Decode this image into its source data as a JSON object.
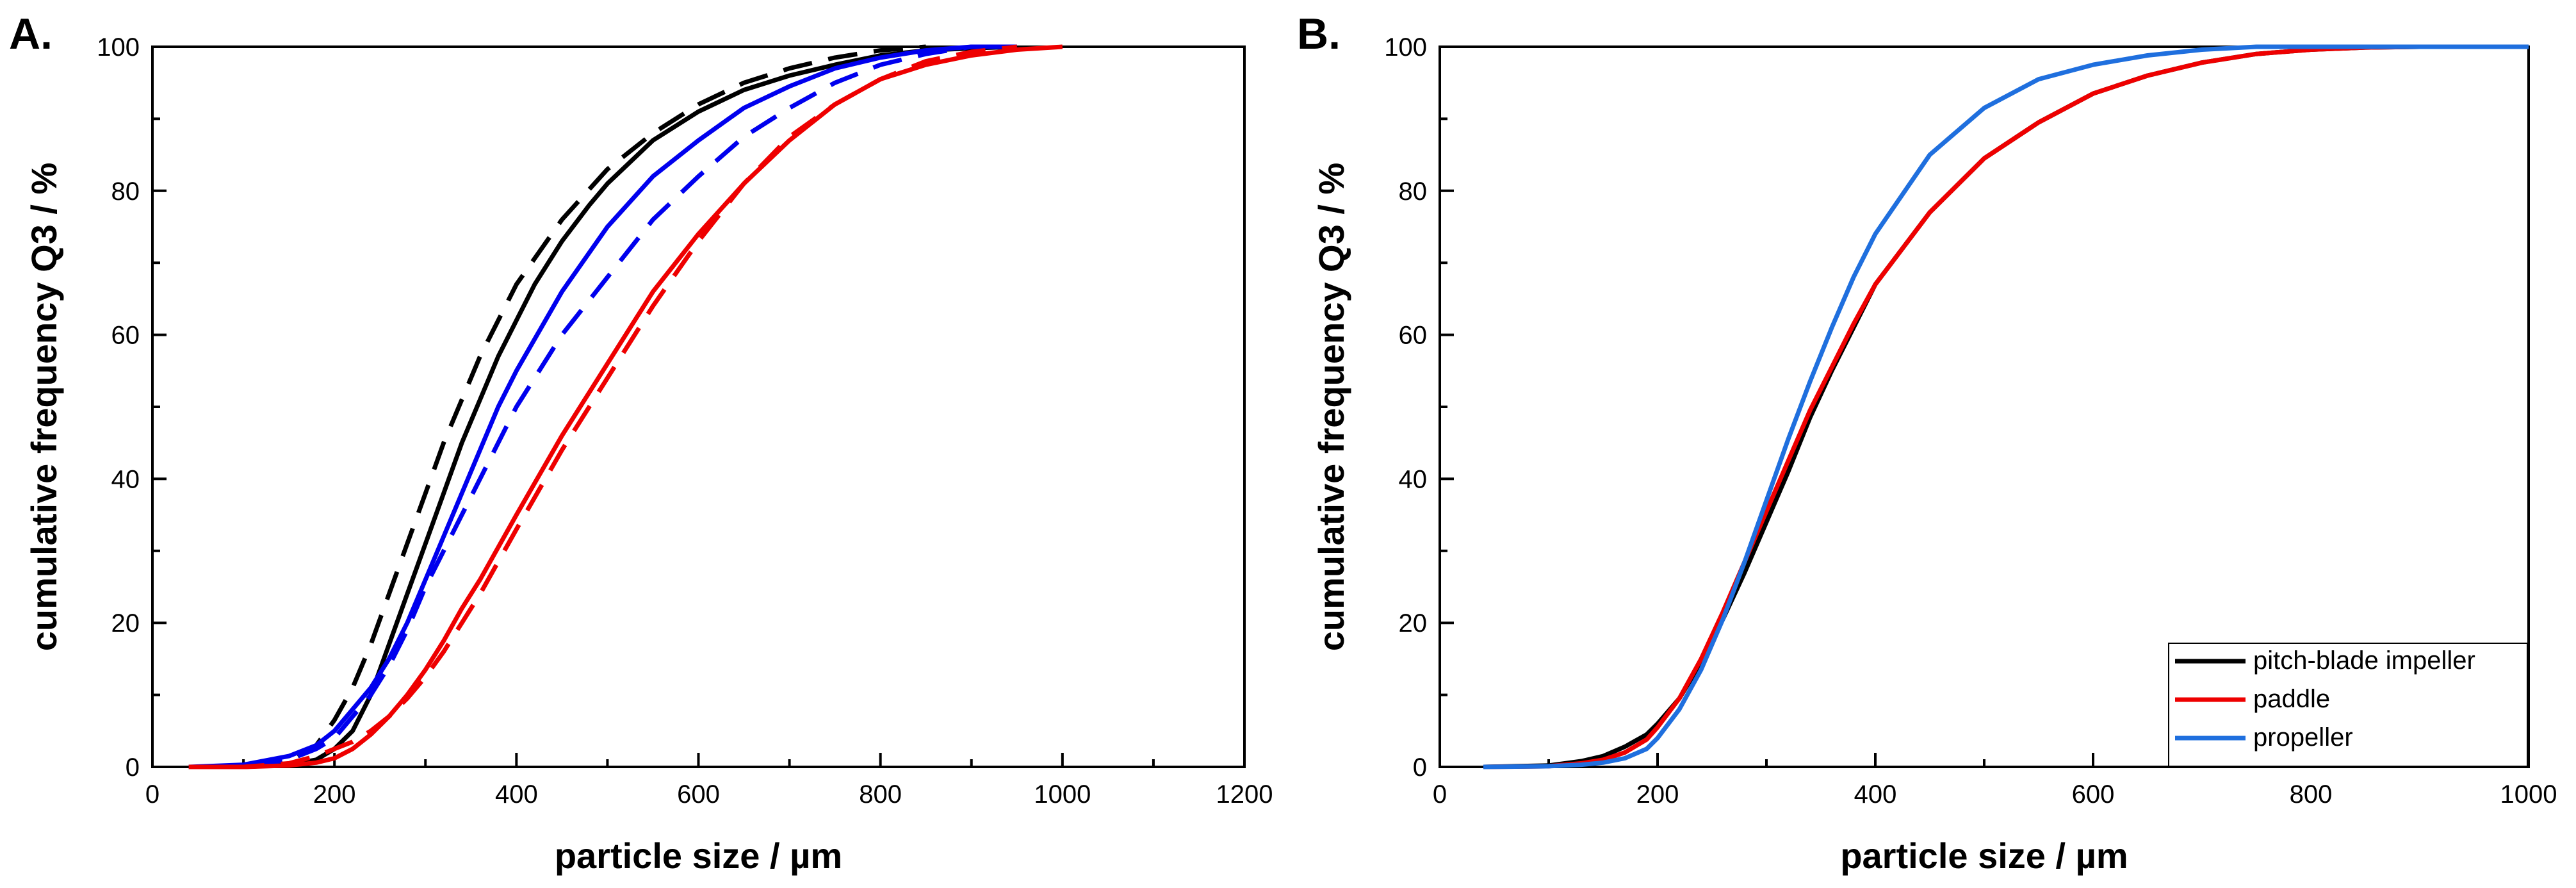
{
  "chart_data": [
    {
      "panel_label": "A.",
      "type": "line",
      "xlabel": "particle size / µm",
      "ylabel": "cumulative frequency Q3 / %",
      "xlim": [
        0,
        1200
      ],
      "ylim": [
        0,
        100
      ],
      "xticks": [
        0,
        200,
        400,
        600,
        800,
        1000,
        1200
      ],
      "yticks": [
        0,
        20,
        40,
        60,
        80,
        100
      ],
      "xtick_labels": [
        "0",
        "200",
        "400",
        "600",
        "800",
        "1000",
        "1200"
      ],
      "ytick_labels": [
        "0",
        "20",
        "40",
        "60",
        "80",
        "100"
      ],
      "grid": false,
      "series": [
        {
          "color": "#000000",
          "dash": "solid",
          "x": [
            40,
            100,
            150,
            180,
            200,
            220,
            240,
            260,
            280,
            300,
            320,
            340,
            360,
            380,
            400,
            420,
            450,
            480,
            500,
            550,
            600,
            650,
            700,
            750,
            800,
            850,
            900,
            950
          ],
          "y": [
            0,
            0,
            0.3,
            1,
            2.5,
            5,
            10,
            17,
            24,
            31,
            38,
            45,
            51,
            57,
            62,
            67,
            73,
            78,
            81,
            87,
            91,
            94,
            96,
            97.5,
            98.8,
            99.5,
            99.8,
            100
          ]
        },
        {
          "color": "#000000",
          "dash": "dashed",
          "x": [
            60,
            100,
            150,
            180,
            200,
            220,
            240,
            260,
            280,
            300,
            320,
            340,
            360,
            380,
            400,
            450,
            500,
            550,
            600,
            650,
            700,
            750,
            800,
            850
          ],
          "y": [
            0,
            0,
            0.8,
            3,
            6.5,
            11,
            17,
            24,
            31,
            38,
            45,
            51,
            57,
            62,
            67,
            76,
            83,
            88,
            92,
            95,
            97,
            98.5,
            99.5,
            100
          ]
        },
        {
          "color": "#0000ee",
          "dash": "solid",
          "x": [
            40,
            100,
            150,
            180,
            200,
            220,
            240,
            260,
            280,
            300,
            320,
            340,
            360,
            380,
            400,
            450,
            500,
            550,
            600,
            650,
            700,
            750,
            800,
            850,
            900,
            950
          ],
          "y": [
            0,
            0.3,
            1.5,
            3,
            5,
            8,
            11,
            15,
            20,
            26,
            32,
            38,
            44,
            50,
            55,
            66,
            75,
            82,
            87,
            91.5,
            94.5,
            97,
            98.5,
            99.5,
            100,
            100
          ]
        },
        {
          "color": "#0000ee",
          "dash": "dashed",
          "x": [
            60,
            100,
            150,
            180,
            200,
            220,
            240,
            260,
            280,
            300,
            320,
            340,
            360,
            380,
            400,
            450,
            500,
            550,
            600,
            650,
            700,
            750,
            800,
            850,
            900
          ],
          "y": [
            0,
            0,
            1,
            2.5,
            4,
            7,
            10,
            14,
            19,
            25,
            30,
            35,
            40,
            45,
            50,
            60,
            68,
            76,
            82,
            87.5,
            91.5,
            95,
            97.5,
            99,
            100
          ]
        },
        {
          "color": "#ee0000",
          "dash": "solid",
          "x": [
            40,
            100,
            150,
            180,
            200,
            220,
            240,
            260,
            280,
            300,
            320,
            340,
            360,
            380,
            400,
            450,
            500,
            550,
            600,
            650,
            700,
            750,
            800,
            850,
            900,
            950,
            1000
          ],
          "y": [
            0,
            0,
            0.2,
            0.6,
            1.2,
            2.5,
            4.5,
            7,
            10,
            13.5,
            17.5,
            22,
            26,
            30.5,
            35,
            46,
            56,
            66,
            74,
            81,
            87,
            92,
            95.5,
            97.5,
            98.8,
            99.6,
            100
          ]
        },
        {
          "color": "#ee0000",
          "dash": "dashed",
          "x": [
            40,
            100,
            150,
            180,
            200,
            220,
            240,
            260,
            280,
            300,
            320,
            340,
            360,
            380,
            400,
            450,
            500,
            550,
            600,
            650,
            700,
            750,
            800,
            850,
            900,
            950
          ],
          "y": [
            0,
            0,
            0.5,
            1.5,
            2.5,
            3.5,
            5,
            7,
            9.5,
            12.5,
            16,
            20,
            24,
            28.5,
            33,
            44,
            54,
            64,
            73,
            81,
            87.5,
            92,
            95.5,
            98,
            99.3,
            100
          ]
        }
      ]
    },
    {
      "panel_label": "B.",
      "type": "line",
      "xlabel": "particle size / µm",
      "ylabel": "cumulative frequency Q3 / %",
      "xlim": [
        0,
        1000
      ],
      "ylim": [
        0,
        100
      ],
      "xticks": [
        0,
        200,
        400,
        600,
        800,
        1000
      ],
      "yticks": [
        0,
        20,
        40,
        60,
        80,
        100
      ],
      "xtick_labels": [
        "0",
        "200",
        "400",
        "600",
        "800",
        "1000"
      ],
      "ytick_labels": [
        "0",
        "20",
        "40",
        "60",
        "80",
        "100"
      ],
      "grid": false,
      "legend_position": "bottom-right",
      "series": [
        {
          "name": "pitch-blade impeller",
          "color": "#000000",
          "dash": "solid",
          "x": [
            40,
            100,
            130,
            150,
            170,
            190,
            200,
            220,
            240,
            260,
            280,
            300,
            320,
            340,
            360,
            380,
            400,
            450,
            500,
            550,
            600,
            650,
            700,
            750,
            800,
            850,
            900,
            1000
          ],
          "y": [
            0,
            0.2,
            0.8,
            1.5,
            2.8,
            4.5,
            6,
            9.5,
            14.5,
            20.5,
            27,
            34,
            41,
            48.5,
            55,
            61,
            67,
            77,
            84.5,
            89.5,
            93.5,
            96,
            97.8,
            99,
            99.6,
            99.9,
            100,
            100
          ]
        },
        {
          "name": "paddle",
          "color": "#ee0000",
          "dash": "solid",
          "x": [
            40,
            100,
            130,
            150,
            170,
            190,
            200,
            220,
            240,
            260,
            280,
            300,
            320,
            340,
            360,
            380,
            400,
            450,
            500,
            550,
            600,
            650,
            700,
            750,
            800,
            850,
            900,
            1000
          ],
          "y": [
            0,
            0.1,
            0.5,
            1,
            2,
            3.8,
            5.5,
            9.5,
            15,
            21.5,
            28.5,
            35.5,
            42.5,
            49.5,
            55.5,
            61.5,
            67,
            77,
            84.5,
            89.5,
            93.5,
            96,
            97.8,
            99,
            99.6,
            99.9,
            100,
            100
          ]
        },
        {
          "name": "propeller",
          "color": "#1f6fde",
          "dash": "solid",
          "x": [
            40,
            100,
            130,
            150,
            170,
            190,
            200,
            220,
            240,
            260,
            280,
            300,
            320,
            340,
            360,
            380,
            400,
            450,
            500,
            550,
            600,
            650,
            700,
            750,
            800,
            1000
          ],
          "y": [
            0,
            0.1,
            0.3,
            0.6,
            1.2,
            2.5,
            4,
            8,
            13.5,
            20.5,
            28.5,
            37,
            45.5,
            53.5,
            61,
            68,
            74,
            85,
            91.5,
            95.5,
            97.5,
            98.8,
            99.6,
            100,
            100,
            100
          ]
        }
      ]
    }
  ]
}
